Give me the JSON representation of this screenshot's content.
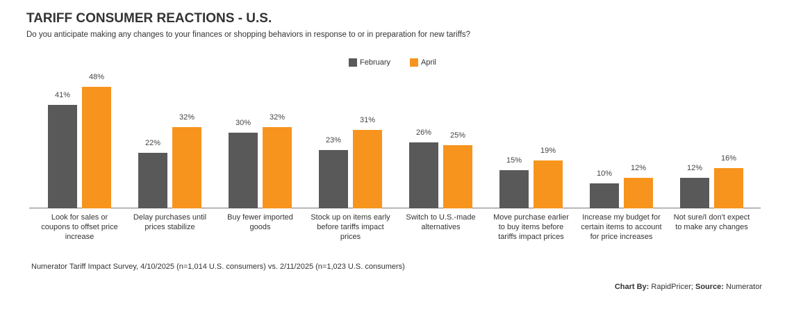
{
  "chart_data": {
    "type": "bar",
    "title": "TARIFF CONSUMER REACTIONS - U.S.",
    "subtitle": "Do you anticipate making any changes to your finances or shopping behaviors in response to or in preparation for new tariffs?",
    "categories": [
      "Look for sales or coupons to offset price increase",
      "Delay purchases until prices stabilize",
      "Buy fewer imported goods",
      "Stock up on items early before tariffs impact prices",
      "Switch to U.S.-made alternatives",
      "Move purchase earlier to buy items before tariffs impact prices",
      "Increase my budget for certain items to account for price increases",
      "Not sure/I don't expect to make any changes"
    ],
    "series": [
      {
        "name": "February",
        "color": "#595959",
        "values": [
          41,
          22,
          30,
          23,
          26,
          15,
          10,
          12
        ],
        "value_labels": [
          "41%",
          "22%",
          "30%",
          "23%",
          "26%",
          "15%",
          "10%",
          "12%"
        ]
      },
      {
        "name": "April",
        "color": "#f7941d",
        "values": [
          48,
          32,
          32,
          31,
          25,
          19,
          12,
          16
        ],
        "value_labels": [
          "48%",
          "32%",
          "32%",
          "31%",
          "25%",
          "19%",
          "12%",
          "16%"
        ]
      }
    ],
    "note": "Numerator Tariff Impact Survey, 4/10/2025 (n=1,014 U.S. consumers) vs. 2/11/2025 (n=1,023 U.S. consumers)",
    "credit_label": "Chart By:",
    "credit": "RapidPricer;",
    "source_label": "Source:",
    "source": "Numerator"
  }
}
